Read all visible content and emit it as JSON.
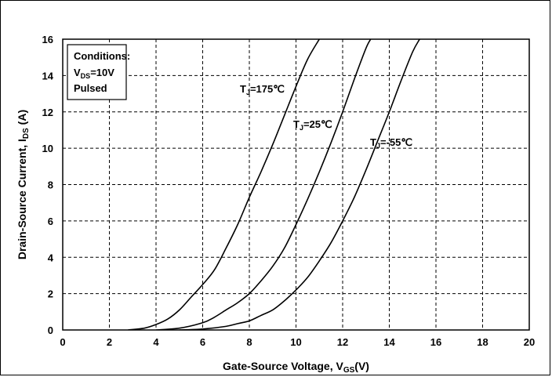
{
  "chart_data": {
    "type": "line",
    "title": "",
    "xlabel": "Gate-Source Voltage, V",
    "xlabel_sub": "GS",
    "xlabel_suffix": "(V)",
    "ylabel": "Drain-Source Current, I",
    "ylabel_sub": "DS",
    "ylabel_suffix": " (A)",
    "xlim": [
      0,
      20
    ],
    "ylim": [
      0,
      16
    ],
    "xticks": [
      0,
      2,
      4,
      6,
      8,
      10,
      12,
      14,
      16,
      18,
      20
    ],
    "yticks": [
      0,
      2,
      4,
      6,
      8,
      10,
      12,
      14,
      16
    ],
    "grid": true,
    "conditions": {
      "title": "Conditions:",
      "vds_main": "V",
      "vds_sub": "DS",
      "vds_value": "=10V",
      "pulsed": "Pulsed"
    },
    "series": [
      {
        "label_main": "T",
        "label_sub": "J",
        "label_value": "=175℃",
        "x": [
          2.8,
          3.5,
          4.0,
          4.5,
          5.0,
          5.5,
          6.0,
          6.5,
          7.0,
          7.5,
          8.0,
          8.5,
          9.0,
          9.5,
          10.0,
          10.5,
          11.0
        ],
        "y": [
          0.0,
          0.1,
          0.3,
          0.6,
          1.1,
          1.8,
          2.5,
          3.3,
          4.5,
          5.8,
          7.3,
          8.7,
          10.2,
          11.8,
          13.4,
          14.9,
          16.0
        ]
      },
      {
        "label_main": "T",
        "label_sub": "J",
        "label_value": "=25℃",
        "x": [
          4.0,
          5.0,
          6.0,
          6.5,
          7.0,
          7.5,
          8.0,
          8.5,
          9.0,
          9.5,
          10.0,
          10.5,
          11.0,
          11.5,
          12.0,
          12.5,
          13.0,
          13.2
        ],
        "y": [
          0.0,
          0.1,
          0.4,
          0.7,
          1.1,
          1.5,
          2.0,
          2.7,
          3.5,
          4.5,
          5.8,
          7.2,
          8.7,
          10.3,
          12.0,
          13.8,
          15.5,
          16.0
        ]
      },
      {
        "label_main": "T",
        "label_sub": "J",
        "label_value": "=-55℃",
        "x": [
          5.0,
          6.0,
          7.0,
          7.5,
          8.0,
          8.5,
          9.0,
          9.5,
          10.0,
          10.5,
          11.0,
          11.5,
          12.0,
          12.5,
          13.0,
          13.5,
          14.0,
          14.5,
          15.0,
          15.3
        ],
        "y": [
          0.0,
          0.05,
          0.2,
          0.35,
          0.5,
          0.8,
          1.1,
          1.6,
          2.2,
          2.9,
          3.8,
          4.8,
          6.0,
          7.3,
          8.8,
          10.4,
          12.0,
          13.7,
          15.3,
          16.0
        ]
      }
    ]
  }
}
